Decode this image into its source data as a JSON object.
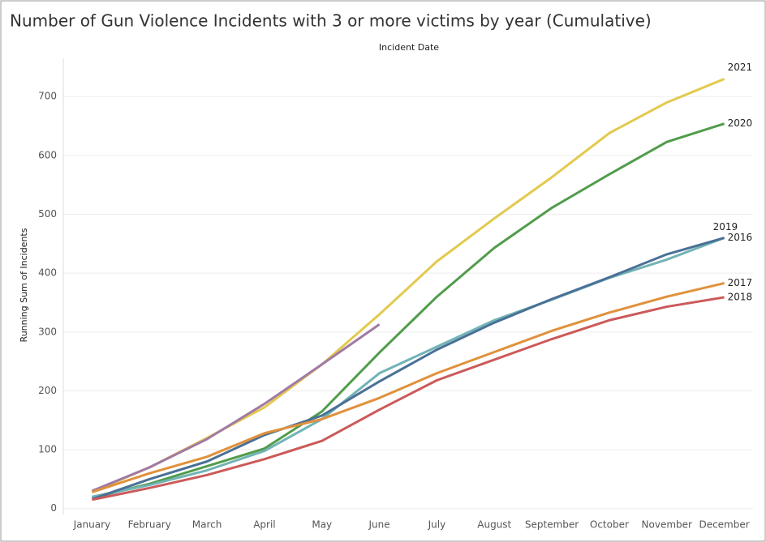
{
  "chart_data": {
    "type": "line",
    "title": "Number of Gun Violence Incidents with 3 or more victims by year (Cumulative)",
    "x_label": "Incident Date",
    "y_label": "Running Sum of Incidents",
    "categories": [
      "January",
      "February",
      "March",
      "April",
      "May",
      "June",
      "July",
      "August",
      "September",
      "October",
      "November",
      "December"
    ],
    "series": [
      {
        "name": "2021",
        "color": "#e3c94e",
        "values": [
          28,
          70,
          120,
          172,
          245,
          330,
          420,
          493,
          563,
          638,
          690,
          730
        ]
      },
      {
        "name": "2020",
        "color": "#519c4b",
        "values": [
          18,
          42,
          72,
          102,
          165,
          265,
          360,
          443,
          511,
          568,
          623,
          654
        ]
      },
      {
        "name": null,
        "color": "#a07aa5",
        "values": [
          30,
          70,
          118,
          178,
          245,
          313,
          null,
          null,
          null,
          null,
          null,
          null
        ]
      },
      {
        "name": "2016",
        "color": "#72b3b6",
        "values": [
          20,
          40,
          65,
          98,
          152,
          230,
          275,
          320,
          355,
          392,
          423,
          460
        ]
      },
      {
        "name": "2019",
        "color": "#4a7096",
        "values": [
          16,
          50,
          80,
          125,
          158,
          216,
          270,
          316,
          356,
          393,
          432,
          460
        ]
      },
      {
        "name": "2017",
        "color": "#e0913b",
        "values": [
          28,
          60,
          88,
          128,
          152,
          188,
          230,
          266,
          302,
          333,
          360,
          383
        ]
      },
      {
        "name": "2018",
        "color": "#cc5a5a",
        "values": [
          15,
          35,
          57,
          84,
          115,
          168,
          218,
          253,
          288,
          320,
          343,
          359
        ]
      }
    ],
    "ylim": [
      -10,
      765
    ],
    "yticks": [
      0,
      100,
      200,
      300,
      400,
      500,
      600,
      700
    ],
    "grid": true
  }
}
